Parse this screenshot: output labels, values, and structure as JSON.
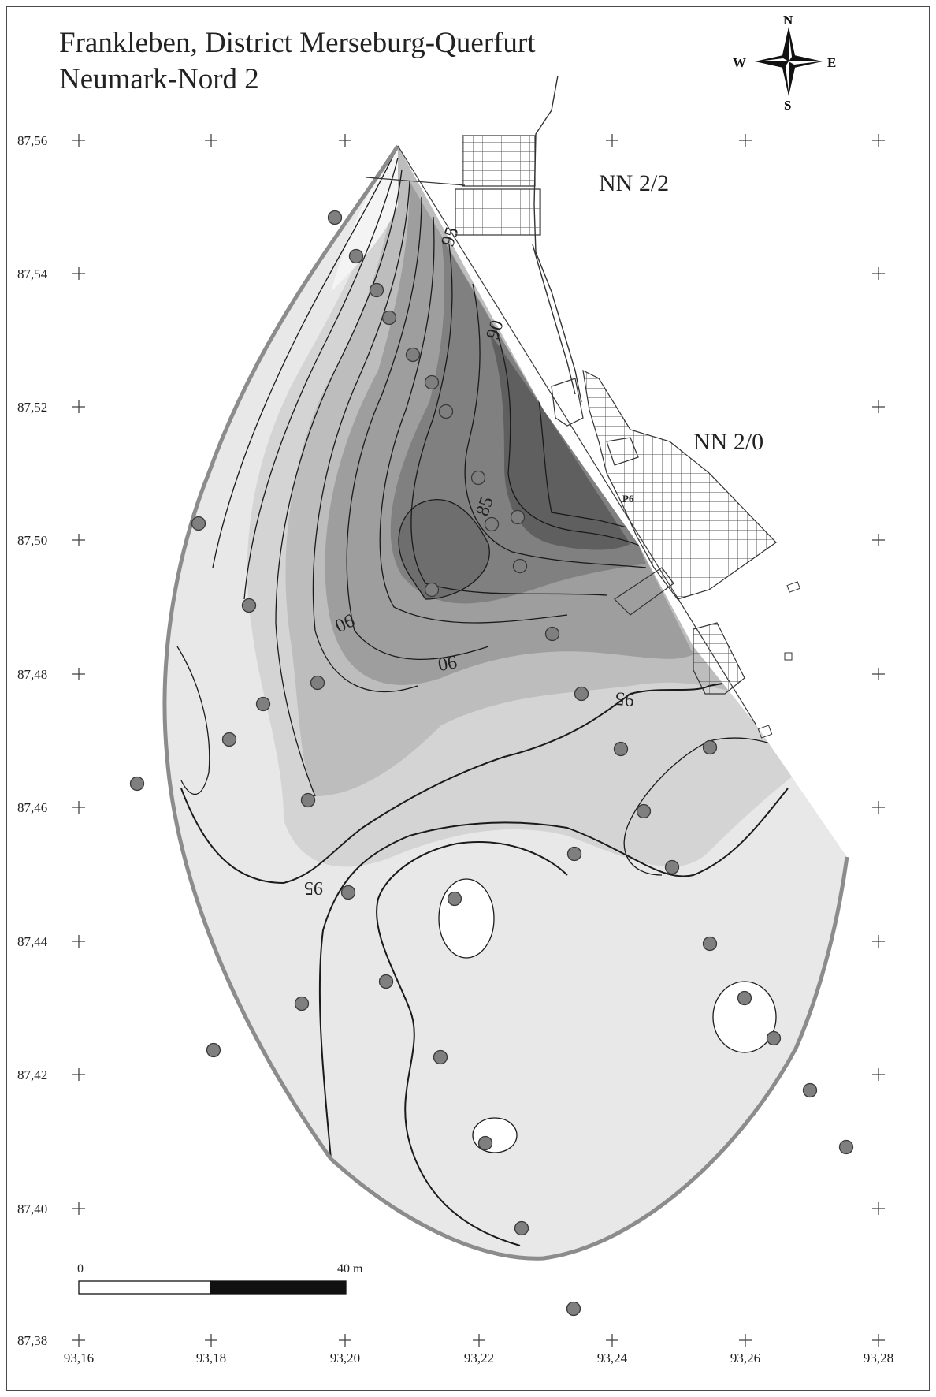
{
  "title": {
    "line1": "Frankleben, District Merseburg-Querfurt",
    "line2": "Neumark-Nord 2"
  },
  "compass": {
    "north": "N",
    "south": "S",
    "east": "E",
    "west": "W"
  },
  "grid": {
    "x_labels": [
      "93,16",
      "93,18",
      "93,20",
      "93,22",
      "93,24",
      "93,26",
      "93,28"
    ],
    "y_labels": [
      "87,56",
      "87,54",
      "87,52",
      "87,50",
      "87,48",
      "87,46",
      "87,44",
      "87,42",
      "87,40",
      "87,38"
    ]
  },
  "area_labels": {
    "nn22": "NN 2/2",
    "nn20": "NN 2/0",
    "p6": "P6"
  },
  "contour_labels": {
    "c95_top": "95",
    "c90_top": "90",
    "c85": "85",
    "c90_left": "90",
    "c90_mid": "90",
    "c95_right": "95",
    "c95_left": "95"
  },
  "scale_bar": {
    "start_label": "0",
    "end_label": "40 m"
  },
  "colors": {
    "outline": "#8c8c8c",
    "sample_point_fill": "#7f7f7f",
    "contour_line": "#1a1a1a",
    "shade_levels": [
      "#f2f2f2",
      "#e4e4e4",
      "#d6d6d6",
      "#c3c3c3",
      "#b0b0b0",
      "#9c9c9c",
      "#888888",
      "#737373",
      "#5e5e5e",
      "#4b4b4b"
    ]
  }
}
